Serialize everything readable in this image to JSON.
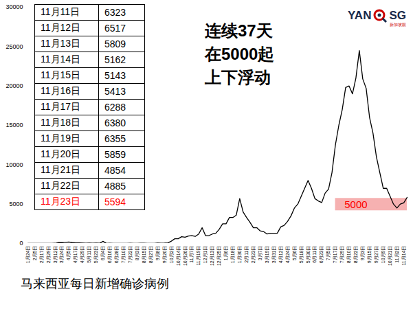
{
  "chart_data": {
    "type": "line",
    "title": "马来西亚每日新增确诊病例",
    "color": "#000000",
    "grid": false,
    "ylim": [
      0,
      30000
    ],
    "yticks": [
      0,
      5000,
      10000,
      15000,
      20000,
      25000,
      30000
    ],
    "categories": [
      "1月24日",
      null,
      "2月5日",
      null,
      "2月17日",
      null,
      "2月29日",
      null,
      "3月12日",
      null,
      "3月24日",
      null,
      "4月5日",
      null,
      "4月17日",
      null,
      "4月29日",
      null,
      "5月11日",
      null,
      "5月23日",
      null,
      "6月4日",
      null,
      "6月16日",
      null,
      "6月28日",
      null,
      "7月10日",
      null,
      "7月22日",
      null,
      "8月3日",
      null,
      "8月15日",
      null,
      "8月27日",
      null,
      "9月8日",
      null,
      "9月20日",
      null,
      "10月2日",
      null,
      "10月14日",
      null,
      "10月26日",
      null,
      "11月7日",
      null,
      "11月19日",
      null,
      "12月1日",
      null,
      "12月13日",
      null,
      "12月25日",
      null,
      "1月6日",
      null,
      "1月18日",
      null,
      "1月30日",
      null,
      "2月11日",
      null,
      "2月23日",
      null,
      "3月7日",
      null,
      "3月19日",
      null,
      "3月31日",
      null,
      "4月12日",
      null,
      "4月24日",
      null,
      "5月6日",
      null,
      "5月18日",
      null,
      "5月30日",
      null,
      "6月11日",
      null,
      "6月23日",
      null,
      "7月5日",
      null,
      "7月17日",
      null,
      "7月29日",
      null,
      "8月10日",
      null,
      "8月22日",
      null,
      "9月3日",
      null,
      "9月15日",
      null,
      "9月27日",
      null,
      "10月9日",
      null,
      "10月21日",
      null,
      "11月2日",
      null,
      "11月14日",
      null
    ],
    "values": [
      0,
      0,
      2,
      1,
      0,
      0,
      4,
      5,
      20,
      120,
      110,
      140,
      180,
      110,
      70,
      70,
      60,
      30,
      60,
      20,
      50,
      20,
      270,
      10,
      30,
      10,
      5,
      5,
      10,
      10,
      20,
      10,
      10,
      20,
      20,
      10,
      10,
      10,
      60,
      30,
      50,
      80,
      300,
      600,
      600,
      860,
      800,
      950,
      1000,
      900,
      1200,
      2000,
      1000,
      1000,
      1200,
      1300,
      1800,
      2500,
      2500,
      3300,
      3300,
      3600,
      5700,
      4000,
      3300,
      2700,
      2000,
      2000,
      1600,
      1500,
      1200,
      1300,
      1300,
      1300,
      2100,
      2300,
      2800,
      3500,
      4500,
      5000,
      6000,
      7000,
      8000,
      7000,
      5700,
      5400,
      5200,
      6400,
      6900,
      9000,
      12500,
      15000,
      17000,
      19800,
      20000,
      19000,
      21000,
      24500,
      20900,
      19700,
      16000,
      14000,
      11000,
      9000,
      7000,
      7000,
      6000,
      5000,
      4500,
      5000,
      5162,
      5859
    ],
    "annotation": [
      "连续37天",
      "在5000起",
      "上下浮动"
    ],
    "reference": {
      "value": 5000,
      "label": "5000",
      "color": "#ff0000"
    },
    "table": {
      "rows": [
        {
          "date": "11月11日",
          "value": 6323
        },
        {
          "date": "11月12日",
          "value": 6517
        },
        {
          "date": "11月13日",
          "value": 5809
        },
        {
          "date": "11月14日",
          "value": 5162
        },
        {
          "date": "11月15日",
          "value": 5143
        },
        {
          "date": "11月16日",
          "value": 5413
        },
        {
          "date": "11月17日",
          "value": 6288
        },
        {
          "date": "11月18日",
          "value": 6380
        },
        {
          "date": "11月19日",
          "value": 6355
        },
        {
          "date": "11月20日",
          "value": 5859
        },
        {
          "date": "11月21日",
          "value": 4854
        },
        {
          "date": "11月22日",
          "value": 4885
        },
        {
          "date": "11月23日",
          "value": 5594,
          "color": "#ff0000"
        }
      ]
    },
    "logo": {
      "text": [
        "YAN",
        "SG"
      ],
      "subtitle": "新加坡眼"
    }
  }
}
